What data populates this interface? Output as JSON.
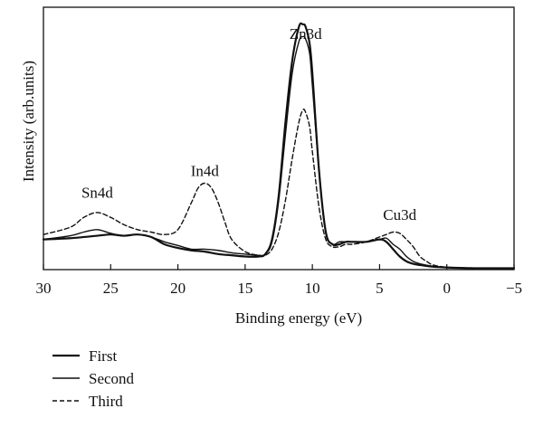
{
  "chart_data": {
    "type": "line",
    "title": "",
    "xlabel": "Binding energy (eV)",
    "ylabel": "Intensity (arb.units)",
    "xlim": [
      30,
      -5
    ],
    "x_reversed": true,
    "y_units": "arbitrary",
    "ylim": [
      0,
      100
    ],
    "grid": false,
    "legend_position": "bottom-left, below plot",
    "x_ticks": [
      30,
      25,
      20,
      15,
      10,
      5,
      0,
      -5
    ],
    "x_tick_labels": [
      "30",
      "25",
      "20",
      "15",
      "10",
      "5",
      "0",
      "−5"
    ],
    "annotations": [
      {
        "text": "Sn4d",
        "x": 26,
        "y": 29
      },
      {
        "text": "In4d",
        "x": 18,
        "y": 38
      },
      {
        "text": "Zn3d",
        "x": 10.5,
        "y": 94
      },
      {
        "text": "Cu3d",
        "x": 3.5,
        "y": 20
      }
    ],
    "series": [
      {
        "name": "First",
        "style": "solid-thick",
        "x": [
          30,
          28,
          26,
          25,
          24,
          23,
          22,
          21,
          20,
          19,
          18,
          17,
          16,
          15,
          14,
          13.5,
          13,
          12.5,
          12,
          11.5,
          11,
          10.7,
          10.5,
          10.2,
          10,
          9.5,
          9,
          8.5,
          8,
          7.5,
          7,
          6,
          5,
          4.5,
          4,
          3.5,
          3,
          2.5,
          2,
          1,
          0,
          -2,
          -5
        ],
        "y": [
          12,
          12.5,
          13.5,
          14,
          13.5,
          14,
          13,
          10,
          8.5,
          7.5,
          7,
          6,
          5.5,
          5,
          5,
          6,
          12,
          30,
          60,
          85,
          99,
          100,
          99,
          92,
          80,
          40,
          15,
          10,
          10,
          11,
          11,
          11,
          12,
          11,
          8,
          5,
          3,
          2,
          1.5,
          0.8,
          0.5,
          0.2,
          0.2
        ]
      },
      {
        "name": "Second",
        "style": "solid-thin",
        "x": [
          30,
          28,
          27,
          26,
          25,
          24,
          23,
          22,
          21,
          20,
          19,
          18,
          17,
          16,
          15,
          14,
          13.5,
          13,
          12.5,
          12,
          11.5,
          11,
          10.7,
          10.5,
          10.2,
          10,
          9.5,
          9,
          8.5,
          8,
          7.5,
          7,
          6,
          5,
          4.5,
          4,
          3.5,
          3,
          2.5,
          2,
          1,
          0,
          -2,
          -5
        ],
        "y": [
          12,
          13.5,
          15,
          16,
          14.5,
          13.5,
          14,
          13,
          11,
          9.5,
          8,
          8,
          7.5,
          6.5,
          6,
          5.5,
          6,
          11,
          28,
          55,
          80,
          93,
          95,
          94,
          88,
          75,
          40,
          15,
          10,
          11,
          11,
          11,
          11,
          12,
          12.5,
          10,
          8,
          5,
          3,
          2,
          1,
          0.5,
          0.3,
          0.3
        ]
      },
      {
        "name": "Third",
        "style": "dashed",
        "x": [
          30,
          28,
          27,
          26,
          25,
          24,
          23,
          22,
          21,
          20,
          19,
          18.5,
          18,
          17.5,
          17,
          16.5,
          16,
          15,
          14,
          13.5,
          13,
          12.5,
          12,
          11.5,
          11,
          10.7,
          10.5,
          10.2,
          10,
          9.5,
          9,
          8.5,
          8,
          7.5,
          7,
          6,
          5,
          4.5,
          4,
          3.5,
          3,
          2.5,
          2,
          1.5,
          1,
          0,
          -2,
          -5
        ],
        "y": [
          14,
          17,
          21,
          23,
          21,
          18,
          16,
          15,
          14,
          16,
          27,
          33,
          35,
          33,
          27,
          19,
          12,
          7,
          5.5,
          5.5,
          8,
          15,
          28,
          45,
          60,
          65,
          64,
          58,
          48,
          25,
          12,
          9,
          9,
          10,
          10,
          11,
          13,
          14,
          15,
          14.5,
          12,
          9,
          5,
          3,
          1.5,
          0.6,
          0.3,
          0.3
        ]
      }
    ]
  }
}
